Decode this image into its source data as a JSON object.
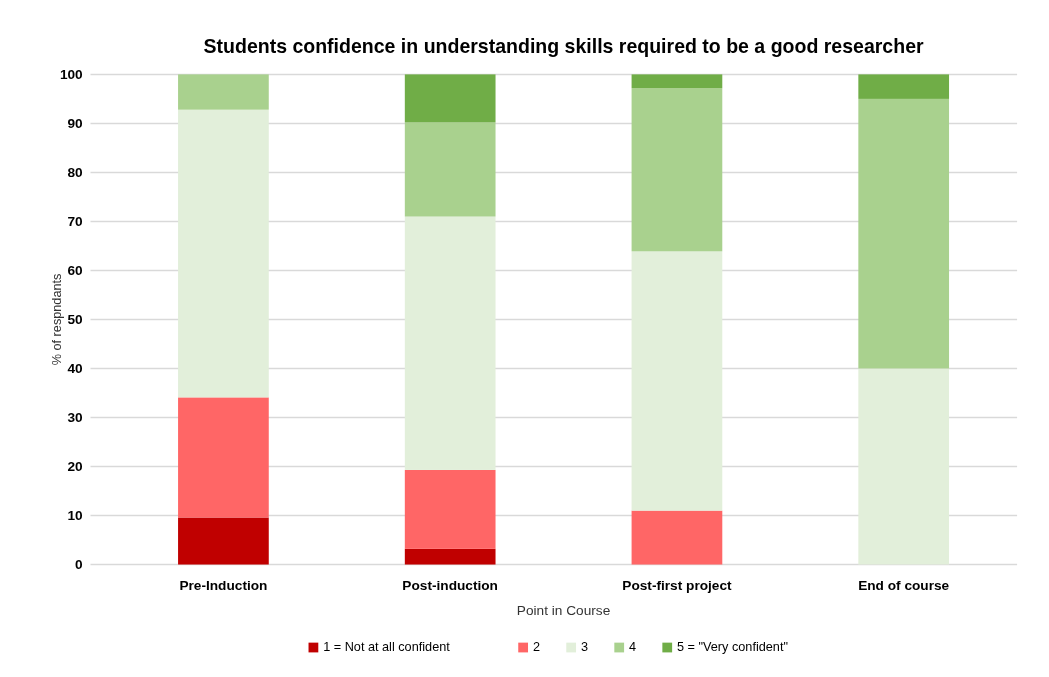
{
  "chart_data": {
    "type": "bar",
    "stacked": true,
    "title": "Students confidence in understanding skills required to be a good researcher",
    "xlabel": "Point in Course",
    "ylabel": "% of respndants",
    "categories": [
      "Pre-Induction",
      "Post-induction",
      "Post-first project",
      "End of course"
    ],
    "series": [
      {
        "name": "1 = Not at all confident",
        "color": "#c00000",
        "values": [
          9.6,
          3.2,
          0,
          0
        ]
      },
      {
        "name": "2",
        "color": "#ff6666",
        "values": [
          24.5,
          16.1,
          11,
          0
        ]
      },
      {
        "name": "3",
        "color": "#e2efda",
        "values": [
          58.7,
          51.7,
          52.9,
          40
        ]
      },
      {
        "name": "4",
        "color": "#a9d18e",
        "values": [
          7.2,
          19.2,
          33.3,
          55
        ]
      },
      {
        "name": "5 = \"Very confident\"",
        "color": "#70ad47",
        "values": [
          0,
          9.8,
          2.8,
          5
        ]
      }
    ],
    "ylim": [
      0,
      100
    ],
    "yticks": [
      0,
      10,
      20,
      30,
      40,
      50,
      60,
      70,
      80,
      90,
      100
    ],
    "grid": "y",
    "legend": "bottom"
  }
}
